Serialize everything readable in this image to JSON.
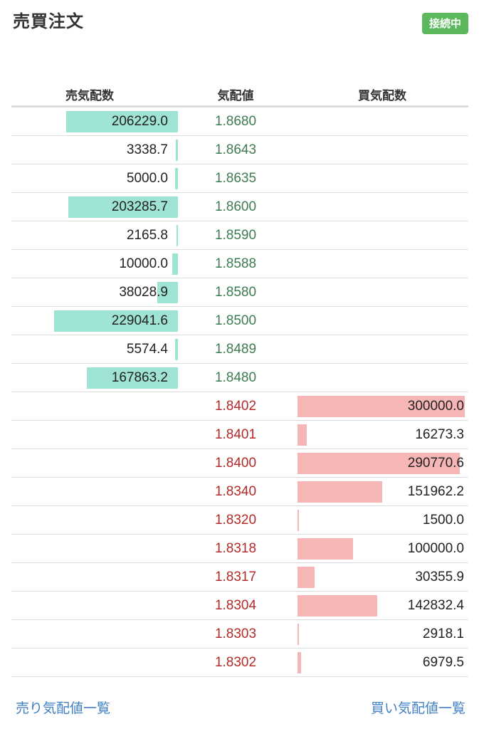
{
  "header": {
    "title": "売買注文",
    "status_badge": "接続中"
  },
  "columns": {
    "ask_qty": "売気配数",
    "price": "気配値",
    "bid_qty": "買気配数"
  },
  "colors": {
    "ask_bar": "#9ee3d3",
    "bid_bar": "#f6b6b6",
    "ask_price": "#3e7a52",
    "bid_price": "#b22a2a",
    "badge": "#5cb85c",
    "link": "#3f7fc4"
  },
  "asks": [
    {
      "price": "1.8680",
      "qty": "206229.0",
      "amount": 206229.0
    },
    {
      "price": "1.8643",
      "qty": "3338.7",
      "amount": 3338.7
    },
    {
      "price": "1.8635",
      "qty": "5000.0",
      "amount": 5000.0
    },
    {
      "price": "1.8600",
      "qty": "203285.7",
      "amount": 203285.7
    },
    {
      "price": "1.8590",
      "qty": "2165.8",
      "amount": 2165.8
    },
    {
      "price": "1.8588",
      "qty": "10000.0",
      "amount": 10000.0
    },
    {
      "price": "1.8580",
      "qty": "38028.9",
      "amount": 38028.9
    },
    {
      "price": "1.8500",
      "qty": "229041.6",
      "amount": 229041.6
    },
    {
      "price": "1.8489",
      "qty": "5574.4",
      "amount": 5574.4
    },
    {
      "price": "1.8480",
      "qty": "167863.2",
      "amount": 167863.2
    }
  ],
  "bids": [
    {
      "price": "1.8402",
      "qty": "300000.0",
      "amount": 300000.0
    },
    {
      "price": "1.8401",
      "qty": "16273.3",
      "amount": 16273.3
    },
    {
      "price": "1.8400",
      "qty": "290770.6",
      "amount": 290770.6
    },
    {
      "price": "1.8340",
      "qty": "151962.2",
      "amount": 151962.2
    },
    {
      "price": "1.8320",
      "qty": "1500.0",
      "amount": 1500.0
    },
    {
      "price": "1.8318",
      "qty": "100000.0",
      "amount": 100000.0
    },
    {
      "price": "1.8317",
      "qty": "30355.9",
      "amount": 30355.9
    },
    {
      "price": "1.8304",
      "qty": "142832.4",
      "amount": 142832.4
    },
    {
      "price": "1.8303",
      "qty": "2918.1",
      "amount": 2918.1
    },
    {
      "price": "1.8302",
      "qty": "6979.5",
      "amount": 6979.5
    }
  ],
  "footer": {
    "ask_list_link": "売り気配値一覧",
    "bid_list_link": "買い気配値一覧"
  }
}
